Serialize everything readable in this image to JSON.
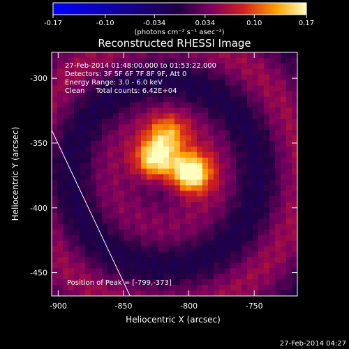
{
  "chart_data": {
    "type": "heatmap",
    "title": "Reconstructed RHESSI Image",
    "xlabel": "Heliocentric X (arcsec)",
    "ylabel": "Heliocentric Y (arcsec)",
    "xlim": [
      -905,
      -717
    ],
    "ylim": [
      -468,
      -280
    ],
    "xticks": [
      -900,
      -850,
      -800,
      -750
    ],
    "yticks": [
      -300,
      -350,
      -400,
      -450
    ],
    "colorbar": {
      "ticks": [
        "-0.17",
        "-0.10",
        "-0.034",
        "0.034",
        "0.10",
        "0.17"
      ],
      "min": -0.17,
      "max": 0.17,
      "unit_label": "(photons cm⁻² s⁻¹ asec⁻²)"
    },
    "info_lines": [
      "27-Feb-2014 01:48:00.000 to 01:53:22.000",
      "Detectors: 3F 5F 6F 7F 8F 9F, Att 0",
      "Energy Range: 3.0 - 6.0 keV",
      "Clean     Total counts: 6.42E+04"
    ],
    "peak_label": "Position of Peak = [-799,-373]",
    "peak": [
      -799,
      -373
    ],
    "sources": [
      {
        "x": -826,
        "y": -363,
        "amplitude": 0.15
      },
      {
        "x": -799,
        "y": -373,
        "amplitude": 0.17
      },
      {
        "x": -816,
        "y": -344,
        "amplitude": 0.09
      }
    ],
    "limb_line": [
      [
        -905,
        -340
      ],
      [
        -845,
        -468
      ]
    ],
    "timestamp": "27-Feb-2014 04:27"
  }
}
